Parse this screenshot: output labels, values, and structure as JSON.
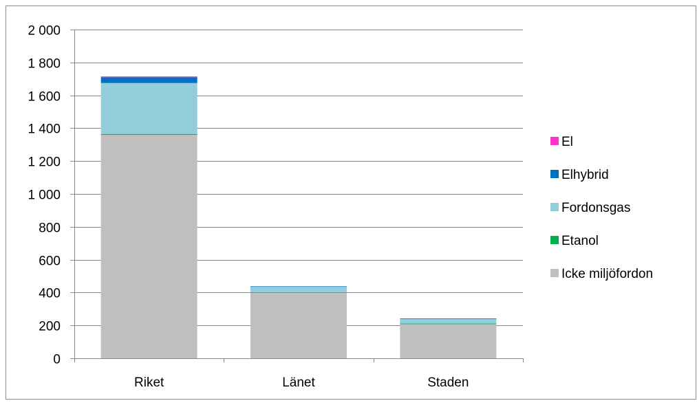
{
  "chart_data": {
    "type": "bar",
    "stacked": true,
    "title": "",
    "xlabel": "",
    "ylabel": "",
    "categories": [
      "Riket",
      "Länet",
      "Staden"
    ],
    "ylim": [
      0,
      2000
    ],
    "yticks": [
      0,
      200,
      400,
      600,
      800,
      1000,
      1200,
      1400,
      1600,
      1800,
      2000
    ],
    "ytick_labels": [
      "0",
      "200",
      "400",
      "600",
      "800",
      "1 000",
      "1 200",
      "1 400",
      "1 600",
      "1 800",
      "2 000"
    ],
    "grid": true,
    "legend_position": "right",
    "series": [
      {
        "name": "Icke miljöfordon",
        "color": "#BFBFBF",
        "values": [
          1360,
          400,
          210
        ]
      },
      {
        "name": "Etanol",
        "color": "#00B050",
        "values": [
          5,
          2,
          1
        ]
      },
      {
        "name": "Fordonsgas",
        "color": "#92CDDC",
        "values": [
          310,
          35,
          30
        ]
      },
      {
        "name": "Elhybrid",
        "color": "#0070C0",
        "values": [
          35,
          1,
          1
        ]
      },
      {
        "name": "El",
        "color": "#FF33CC",
        "values": [
          5,
          0,
          0
        ]
      }
    ]
  }
}
